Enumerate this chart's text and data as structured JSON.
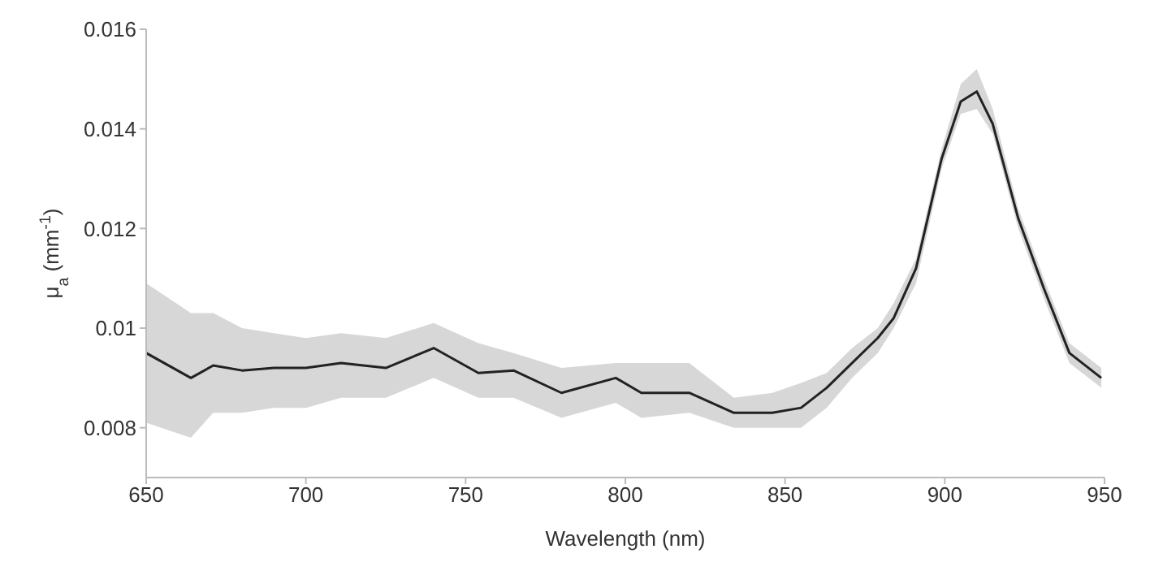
{
  "chart_data": {
    "type": "line",
    "xlabel": "Wavelength (nm)",
    "ylabel": "μ$_{a}$ (mm$^{-1}$)",
    "xlim": [
      650,
      950
    ],
    "ylim": [
      0.007,
      0.016
    ],
    "xticks": [
      650,
      700,
      750,
      800,
      850,
      900,
      950
    ],
    "yticks": [
      0.008,
      0.01,
      0.012,
      0.014,
      0.016
    ],
    "grid": false,
    "legend": false,
    "marker": "none",
    "line_style": "solid",
    "series": [
      {
        "color": "#222222",
        "x": [
          650,
          664,
          671,
          680,
          690,
          700,
          711,
          725,
          740,
          754,
          765,
          780,
          797,
          805,
          820,
          834,
          846,
          855,
          863,
          871,
          879,
          884,
          891,
          899,
          905,
          910,
          915,
          923,
          931,
          939,
          949
        ],
        "values": [
          0.0095,
          0.009,
          0.00925,
          0.00915,
          0.0092,
          0.0092,
          0.0093,
          0.0092,
          0.0096,
          0.0091,
          0.00915,
          0.0087,
          0.009,
          0.0087,
          0.0087,
          0.0083,
          0.0083,
          0.0084,
          0.0088,
          0.0093,
          0.0098,
          0.0102,
          0.0112,
          0.0134,
          0.01455,
          0.01475,
          0.0141,
          0.0122,
          0.0108,
          0.0095,
          0.009
        ],
        "lower": [
          0.0081,
          0.0078,
          0.0083,
          0.0083,
          0.0084,
          0.0084,
          0.0086,
          0.0086,
          0.009,
          0.0086,
          0.0086,
          0.0082,
          0.0085,
          0.0082,
          0.0083,
          0.008,
          0.008,
          0.008,
          0.0084,
          0.009,
          0.0095,
          0.01,
          0.0109,
          0.0132,
          0.0143,
          0.0144,
          0.0139,
          0.012,
          0.0106,
          0.0093,
          0.0088
        ],
        "upper": [
          0.0109,
          0.0103,
          0.0103,
          0.01,
          0.0099,
          0.0098,
          0.0099,
          0.0098,
          0.0101,
          0.0097,
          0.0095,
          0.0092,
          0.0093,
          0.0093,
          0.0093,
          0.0086,
          0.0087,
          0.0089,
          0.0091,
          0.0096,
          0.01,
          0.0105,
          0.0114,
          0.0136,
          0.0149,
          0.0152,
          0.0144,
          0.0124,
          0.011,
          0.0097,
          0.0092
        ]
      }
    ]
  }
}
